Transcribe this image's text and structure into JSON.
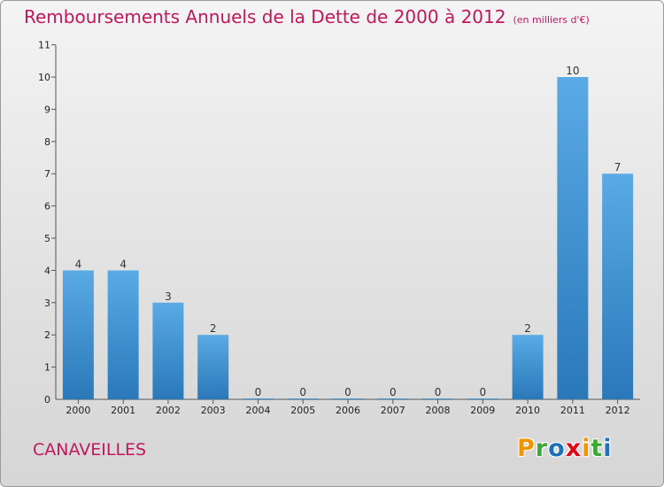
{
  "header": {
    "title": "Remboursements Annuels de la Dette de 2000 à 2012",
    "subtitle": "(en milliers d'€)"
  },
  "footer": {
    "place": "CANAVEILLES",
    "logo_text": "Proxiti",
    "logo_colors": [
      "#f29400",
      "#3aa935",
      "#1d71b8",
      "#e30613",
      "#f29400",
      "#3aa935",
      "#1d71b8"
    ]
  },
  "chart_data": {
    "type": "bar",
    "title": "Remboursements Annuels de la Dette de 2000 à 2012",
    "subtitle": "(en milliers d'€)",
    "xlabel": "",
    "ylabel": "",
    "categories": [
      "2000",
      "2001",
      "2002",
      "2003",
      "2004",
      "2005",
      "2006",
      "2007",
      "2008",
      "2009",
      "2010",
      "2011",
      "2012"
    ],
    "values": [
      4,
      4,
      3,
      2,
      0,
      0,
      0,
      0,
      0,
      0,
      2,
      10,
      7
    ],
    "ylim": [
      0,
      11
    ],
    "yticks": [
      1,
      2,
      3,
      4,
      5,
      6,
      7,
      8,
      9,
      10,
      11
    ],
    "grid": false,
    "bar_color_top": "#5aaae6",
    "bar_color_bottom": "#2a78b8"
  }
}
